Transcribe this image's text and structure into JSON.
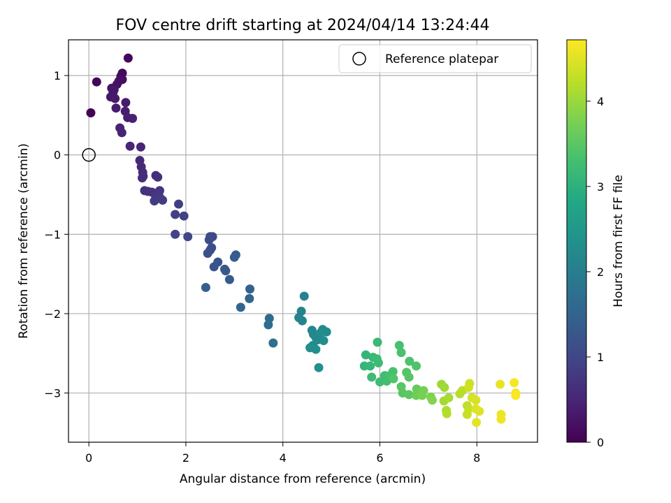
{
  "chart_data": {
    "type": "scatter",
    "title": "FOV centre drift starting at 2024/04/14 13:24:44",
    "xlabel": "Angular distance from reference (arcmin)",
    "ylabel": "Rotation from reference (arcmin)",
    "xlim": [
      -0.42,
      9.25
    ],
    "ylim": [
      -3.62,
      1.45
    ],
    "xticks": [
      0,
      2,
      4,
      6,
      8
    ],
    "xtick_labels": [
      "0",
      "2",
      "4",
      "6",
      "8"
    ],
    "yticks": [
      1,
      0,
      -1,
      -2,
      -3
    ],
    "ytick_labels": [
      "1",
      "0",
      "−1",
      "−2",
      "−3"
    ],
    "grid": true,
    "legend": {
      "placement": "top-right",
      "entries": [
        "Reference platepar"
      ]
    },
    "reference_point": {
      "x": 0,
      "y": 0,
      "marker": "open-circle"
    },
    "colorbar": {
      "label": "Hours from first FF file",
      "colormap": "viridis",
      "range": [
        0,
        4.72
      ],
      "ticks": [
        0,
        1,
        2,
        3,
        4
      ],
      "tick_labels": [
        "0",
        "1",
        "2",
        "3",
        "4"
      ]
    },
    "points": [
      {
        "x": 0.04,
        "y": 0.53,
        "c": 0.02
      },
      {
        "x": 0.16,
        "y": 0.92,
        "c": 0.05
      },
      {
        "x": 0.81,
        "y": 1.22,
        "c": 0.08
      },
      {
        "x": 0.69,
        "y": 1.03,
        "c": 0.12
      },
      {
        "x": 0.66,
        "y": 0.99,
        "c": 0.15
      },
      {
        "x": 0.69,
        "y": 0.95,
        "c": 0.18
      },
      {
        "x": 0.62,
        "y": 0.93,
        "c": 0.2
      },
      {
        "x": 0.58,
        "y": 0.89,
        "c": 0.22
      },
      {
        "x": 0.47,
        "y": 0.84,
        "c": 0.25
      },
      {
        "x": 0.52,
        "y": 0.82,
        "c": 0.27
      },
      {
        "x": 0.5,
        "y": 0.79,
        "c": 0.29
      },
      {
        "x": 0.45,
        "y": 0.73,
        "c": 0.31
      },
      {
        "x": 0.54,
        "y": 0.71,
        "c": 0.33
      },
      {
        "x": 0.76,
        "y": 0.66,
        "c": 0.35
      },
      {
        "x": 0.56,
        "y": 0.59,
        "c": 0.37
      },
      {
        "x": 0.75,
        "y": 0.55,
        "c": 0.39
      },
      {
        "x": 0.8,
        "y": 0.47,
        "c": 0.41
      },
      {
        "x": 0.9,
        "y": 0.46,
        "c": 0.43
      },
      {
        "x": 0.64,
        "y": 0.34,
        "c": 0.45
      },
      {
        "x": 0.68,
        "y": 0.28,
        "c": 0.47
      },
      {
        "x": 0.85,
        "y": 0.11,
        "c": 0.49
      },
      {
        "x": 1.07,
        "y": 0.1,
        "c": 0.51
      },
      {
        "x": 1.05,
        "y": -0.07,
        "c": 0.53
      },
      {
        "x": 1.08,
        "y": -0.15,
        "c": 0.55
      },
      {
        "x": 1.11,
        "y": -0.22,
        "c": 0.57
      },
      {
        "x": 1.12,
        "y": -0.27,
        "c": 0.59
      },
      {
        "x": 1.1,
        "y": -0.29,
        "c": 0.61
      },
      {
        "x": 1.38,
        "y": -0.26,
        "c": 0.63
      },
      {
        "x": 1.42,
        "y": -0.28,
        "c": 0.65
      },
      {
        "x": 1.15,
        "y": -0.45,
        "c": 0.67
      },
      {
        "x": 1.22,
        "y": -0.46,
        "c": 0.69
      },
      {
        "x": 1.3,
        "y": -0.47,
        "c": 0.71
      },
      {
        "x": 1.46,
        "y": -0.45,
        "c": 0.73
      },
      {
        "x": 1.44,
        "y": -0.49,
        "c": 0.75
      },
      {
        "x": 1.38,
        "y": -0.53,
        "c": 0.77
      },
      {
        "x": 1.48,
        "y": -0.55,
        "c": 0.79
      },
      {
        "x": 1.35,
        "y": -0.58,
        "c": 0.81
      },
      {
        "x": 1.52,
        "y": -0.57,
        "c": 0.83
      },
      {
        "x": 1.85,
        "y": -0.62,
        "c": 0.86
      },
      {
        "x": 1.78,
        "y": -0.75,
        "c": 0.89
      },
      {
        "x": 1.96,
        "y": -0.77,
        "c": 0.92
      },
      {
        "x": 1.78,
        "y": -1.0,
        "c": 0.95
      },
      {
        "x": 2.04,
        "y": -1.03,
        "c": 0.98
      },
      {
        "x": 2.5,
        "y": -1.03,
        "c": 1.02
      },
      {
        "x": 2.55,
        "y": -1.03,
        "c": 1.05
      },
      {
        "x": 2.48,
        "y": -1.07,
        "c": 1.08
      },
      {
        "x": 2.53,
        "y": -1.17,
        "c": 1.11
      },
      {
        "x": 2.5,
        "y": -1.2,
        "c": 1.14
      },
      {
        "x": 2.45,
        "y": -1.24,
        "c": 1.17
      },
      {
        "x": 2.66,
        "y": -1.35,
        "c": 1.2
      },
      {
        "x": 2.58,
        "y": -1.41,
        "c": 1.23
      },
      {
        "x": 2.8,
        "y": -1.44,
        "c": 1.26
      },
      {
        "x": 2.82,
        "y": -1.46,
        "c": 1.29
      },
      {
        "x": 2.9,
        "y": -1.57,
        "c": 1.32
      },
      {
        "x": 3.03,
        "y": -1.26,
        "c": 1.35
      },
      {
        "x": 3.0,
        "y": -1.29,
        "c": 1.38
      },
      {
        "x": 2.41,
        "y": -1.67,
        "c": 1.41
      },
      {
        "x": 3.32,
        "y": -1.69,
        "c": 1.48
      },
      {
        "x": 3.31,
        "y": -1.81,
        "c": 1.52
      },
      {
        "x": 3.13,
        "y": -1.92,
        "c": 1.56
      },
      {
        "x": 3.72,
        "y": -2.06,
        "c": 1.62
      },
      {
        "x": 3.7,
        "y": -2.14,
        "c": 1.66
      },
      {
        "x": 3.8,
        "y": -2.37,
        "c": 1.72
      },
      {
        "x": 4.44,
        "y": -1.78,
        "c": 2.05
      },
      {
        "x": 4.38,
        "y": -1.97,
        "c": 2.08
      },
      {
        "x": 4.33,
        "y": -2.05,
        "c": 2.1
      },
      {
        "x": 4.4,
        "y": -2.09,
        "c": 2.12
      },
      {
        "x": 4.6,
        "y": -2.21,
        "c": 2.15
      },
      {
        "x": 4.63,
        "y": -2.26,
        "c": 2.17
      },
      {
        "x": 4.68,
        "y": -2.3,
        "c": 2.19
      },
      {
        "x": 4.72,
        "y": -2.33,
        "c": 2.21
      },
      {
        "x": 4.82,
        "y": -2.2,
        "c": 2.23
      },
      {
        "x": 4.9,
        "y": -2.23,
        "c": 2.25
      },
      {
        "x": 4.78,
        "y": -2.24,
        "c": 2.27
      },
      {
        "x": 4.84,
        "y": -2.34,
        "c": 2.29
      },
      {
        "x": 4.62,
        "y": -2.4,
        "c": 2.31
      },
      {
        "x": 4.56,
        "y": -2.43,
        "c": 2.33
      },
      {
        "x": 4.68,
        "y": -2.45,
        "c": 2.35
      },
      {
        "x": 4.74,
        "y": -2.68,
        "c": 2.37
      },
      {
        "x": 5.71,
        "y": -2.52,
        "c": 3.08
      },
      {
        "x": 5.68,
        "y": -2.66,
        "c": 3.1
      },
      {
        "x": 5.8,
        "y": -2.66,
        "c": 3.12
      },
      {
        "x": 5.86,
        "y": -2.55,
        "c": 3.14
      },
      {
        "x": 5.95,
        "y": -2.36,
        "c": 3.16
      },
      {
        "x": 5.94,
        "y": -2.57,
        "c": 3.18
      },
      {
        "x": 5.97,
        "y": -2.62,
        "c": 3.2
      },
      {
        "x": 5.83,
        "y": -2.8,
        "c": 3.22
      },
      {
        "x": 6.0,
        "y": -2.86,
        "c": 3.24
      },
      {
        "x": 6.1,
        "y": -2.78,
        "c": 3.26
      },
      {
        "x": 6.14,
        "y": -2.85,
        "c": 3.28
      },
      {
        "x": 6.2,
        "y": -2.78,
        "c": 3.3
      },
      {
        "x": 6.27,
        "y": -2.73,
        "c": 3.32
      },
      {
        "x": 6.4,
        "y": -2.4,
        "c": 3.34
      },
      {
        "x": 6.44,
        "y": -2.49,
        "c": 3.36
      },
      {
        "x": 6.61,
        "y": -2.6,
        "c": 3.38
      },
      {
        "x": 6.75,
        "y": -2.66,
        "c": 3.4
      },
      {
        "x": 6.28,
        "y": -2.82,
        "c": 3.42
      },
      {
        "x": 6.55,
        "y": -2.74,
        "c": 3.44
      },
      {
        "x": 6.6,
        "y": -2.8,
        "c": 3.46
      },
      {
        "x": 6.44,
        "y": -2.92,
        "c": 3.48
      },
      {
        "x": 6.47,
        "y": -3.0,
        "c": 3.5
      },
      {
        "x": 6.6,
        "y": -3.02,
        "c": 3.52
      },
      {
        "x": 6.76,
        "y": -2.95,
        "c": 3.6
      },
      {
        "x": 6.82,
        "y": -2.99,
        "c": 3.64
      },
      {
        "x": 6.75,
        "y": -3.03,
        "c": 3.68
      },
      {
        "x": 6.9,
        "y": -2.97,
        "c": 3.72
      },
      {
        "x": 6.87,
        "y": -3.03,
        "c": 3.76
      },
      {
        "x": 7.05,
        "y": -3.05,
        "c": 3.8
      },
      {
        "x": 7.08,
        "y": -3.09,
        "c": 3.84
      },
      {
        "x": 7.27,
        "y": -2.89,
        "c": 4.02
      },
      {
        "x": 7.33,
        "y": -2.93,
        "c": 4.05
      },
      {
        "x": 7.32,
        "y": -3.1,
        "c": 4.08
      },
      {
        "x": 7.42,
        "y": -3.06,
        "c": 4.11
      },
      {
        "x": 7.37,
        "y": -3.22,
        "c": 4.14
      },
      {
        "x": 7.38,
        "y": -3.26,
        "c": 4.17
      },
      {
        "x": 7.65,
        "y": -3.01,
        "c": 4.2
      },
      {
        "x": 7.7,
        "y": -2.97,
        "c": 4.23
      },
      {
        "x": 7.8,
        "y": -3.16,
        "c": 4.26
      },
      {
        "x": 7.83,
        "y": -3.2,
        "c": 4.29
      },
      {
        "x": 7.8,
        "y": -3.27,
        "c": 4.32
      },
      {
        "x": 7.85,
        "y": -2.88,
        "c": 4.35
      },
      {
        "x": 7.83,
        "y": -2.93,
        "c": 4.38
      },
      {
        "x": 7.9,
        "y": -3.06,
        "c": 4.41
      },
      {
        "x": 7.98,
        "y": -3.09,
        "c": 4.44
      },
      {
        "x": 7.98,
        "y": -3.2,
        "c": 4.47
      },
      {
        "x": 8.05,
        "y": -3.23,
        "c": 4.5
      },
      {
        "x": 7.99,
        "y": -3.37,
        "c": 4.53
      },
      {
        "x": 8.48,
        "y": -2.89,
        "c": 4.56
      },
      {
        "x": 8.5,
        "y": -3.27,
        "c": 4.59
      },
      {
        "x": 8.5,
        "y": -3.33,
        "c": 4.62
      },
      {
        "x": 8.77,
        "y": -2.87,
        "c": 4.65
      },
      {
        "x": 8.8,
        "y": -3.0,
        "c": 4.68
      },
      {
        "x": 8.8,
        "y": -3.03,
        "c": 4.7
      }
    ]
  }
}
